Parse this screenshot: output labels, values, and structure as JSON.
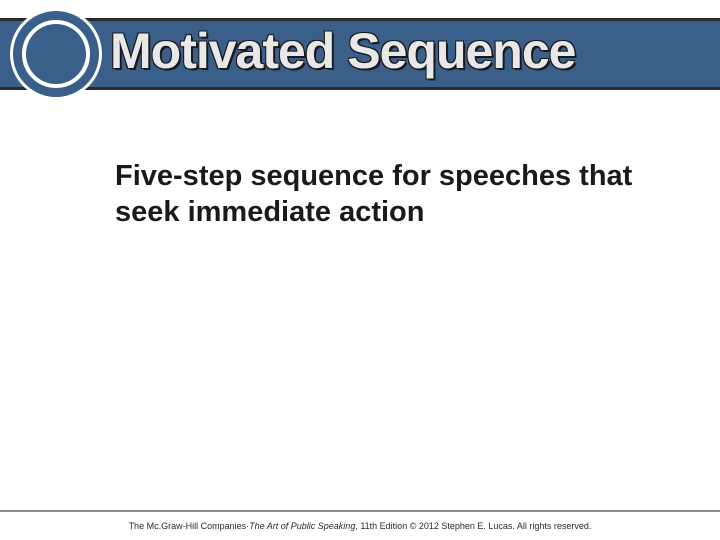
{
  "header": {
    "title": "Motivated Sequence",
    "bar_color": "#3a5f8a",
    "border_color": "#2a2a2a",
    "title_color": "#e8e8e8",
    "title_fontsize": 50
  },
  "circle": {
    "ring_color": "#3a5f8a",
    "inner_color": "#3a5f8a",
    "bg_color": "#ffffff"
  },
  "body": {
    "text": "Five-step sequence for speeches that seek immediate action",
    "fontsize": 29,
    "color": "#1a1a1a"
  },
  "footer": {
    "publisher": "The Mc.Graw-Hill Companies",
    "separator": " · ",
    "book_title": "The Art of Public Speaking",
    "edition_text": ", 11th Edition © 2012 Stephen E. Lucas. All rights reserved.",
    "border_color": "#8a8a8a",
    "fontsize": 9
  },
  "background_color": "#ffffff"
}
